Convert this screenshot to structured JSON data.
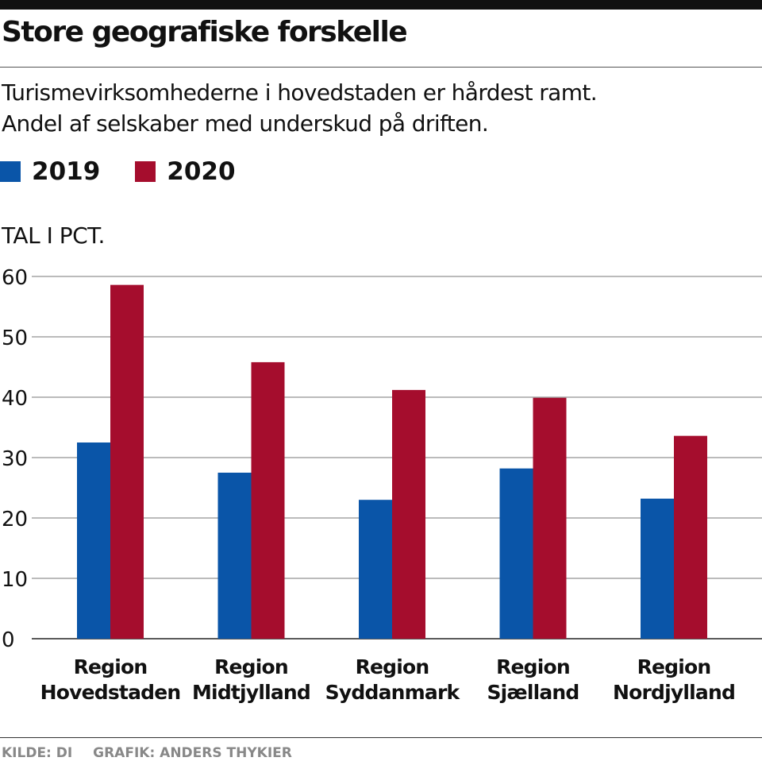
{
  "title": "Store geografiske forskelle",
  "subtitle": [
    "Turismevirksomhederne i hovedstaden er hårdest ramt.",
    "Andel af selskaber med underskud på driften."
  ],
  "footer": {
    "source": "KILDE: DI",
    "credit": "GRAFIK: ANDERS THYKIER"
  },
  "chart_data": {
    "type": "bar",
    "title": "Store geografiske forskelle",
    "ylabel": "TAL I PCT.",
    "ylim": [
      0,
      60
    ],
    "yticks": [
      0,
      10,
      20,
      30,
      40,
      50,
      60
    ],
    "grid": true,
    "legend_position": "top-left",
    "categories": [
      [
        "Region",
        "Hovedstaden"
      ],
      [
        "Region",
        "Midtjylland"
      ],
      [
        "Region",
        "Syddanmark"
      ],
      [
        "Region",
        "Sjælland"
      ],
      [
        "Region",
        "Nordjylland"
      ]
    ],
    "series": [
      {
        "name": "2019",
        "color": "#0a55a8",
        "values": [
          32.5,
          27.5,
          23.0,
          28.2,
          23.2
        ]
      },
      {
        "name": "2020",
        "color": "#a50d2d",
        "values": [
          58.6,
          45.8,
          41.2,
          39.9,
          33.6
        ]
      }
    ]
  }
}
